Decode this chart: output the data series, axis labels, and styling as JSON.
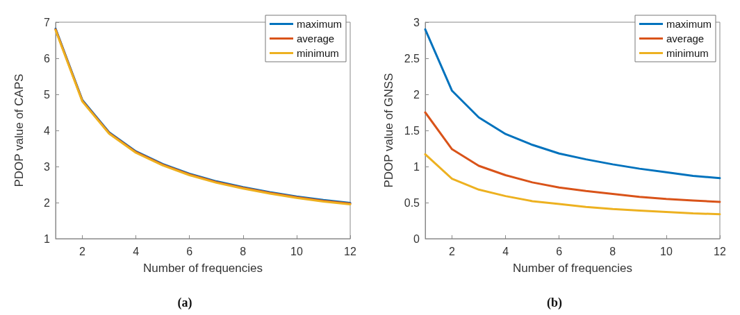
{
  "chart_data": [
    {
      "type": "line",
      "xlabel": "Number of frequencies",
      "ylabel": "PDOP value of CAPS",
      "annotations": [
        "(a)"
      ],
      "x": [
        1,
        2,
        3,
        4,
        5,
        6,
        7,
        8,
        9,
        10,
        11,
        12
      ],
      "xlim": [
        1,
        12
      ],
      "xticks": [
        2,
        4,
        6,
        8,
        10,
        12
      ],
      "ylim": [
        1,
        7
      ],
      "yticks": [
        1,
        2,
        3,
        4,
        5,
        6,
        7
      ],
      "grid": false,
      "legend": "top right",
      "marker": "none",
      "line_style": "solid",
      "series": [
        {
          "name": "maximum",
          "color": "#0072bd",
          "values": [
            6.82,
            4.84,
            3.95,
            3.42,
            3.07,
            2.8,
            2.59,
            2.43,
            2.29,
            2.17,
            2.07,
            1.99
          ]
        },
        {
          "name": "average",
          "color": "#d95319",
          "values": [
            6.8,
            4.82,
            3.93,
            3.4,
            3.05,
            2.78,
            2.57,
            2.41,
            2.27,
            2.15,
            2.05,
            1.97
          ]
        },
        {
          "name": "minimum",
          "color": "#edb120",
          "values": [
            6.78,
            4.8,
            3.91,
            3.38,
            3.03,
            2.76,
            2.55,
            2.39,
            2.25,
            2.13,
            2.03,
            1.95
          ]
        }
      ]
    },
    {
      "type": "line",
      "xlabel": "Number of frequencies",
      "ylabel": "PDOP value of GNSS",
      "annotations": [
        "(b)"
      ],
      "x": [
        1,
        2,
        3,
        4,
        5,
        6,
        7,
        8,
        9,
        10,
        11,
        12
      ],
      "xlim": [
        1,
        12
      ],
      "xticks": [
        2,
        4,
        6,
        8,
        10,
        12
      ],
      "ylim": [
        0,
        3
      ],
      "yticks": [
        0,
        0.5,
        1,
        1.5,
        2,
        2.5,
        3
      ],
      "grid": false,
      "legend": "top right",
      "marker": "none",
      "line_style": "solid",
      "series": [
        {
          "name": "maximum",
          "color": "#0072bd",
          "values": [
            2.9,
            2.05,
            1.68,
            1.45,
            1.3,
            1.18,
            1.1,
            1.03,
            0.97,
            0.92,
            0.87,
            0.84
          ]
        },
        {
          "name": "average",
          "color": "#d95319",
          "values": [
            1.75,
            1.24,
            1.01,
            0.88,
            0.78,
            0.71,
            0.66,
            0.62,
            0.58,
            0.55,
            0.53,
            0.51
          ]
        },
        {
          "name": "minimum",
          "color": "#edb120",
          "values": [
            1.17,
            0.83,
            0.68,
            0.59,
            0.52,
            0.48,
            0.44,
            0.41,
            0.39,
            0.37,
            0.35,
            0.34
          ]
        }
      ]
    }
  ]
}
